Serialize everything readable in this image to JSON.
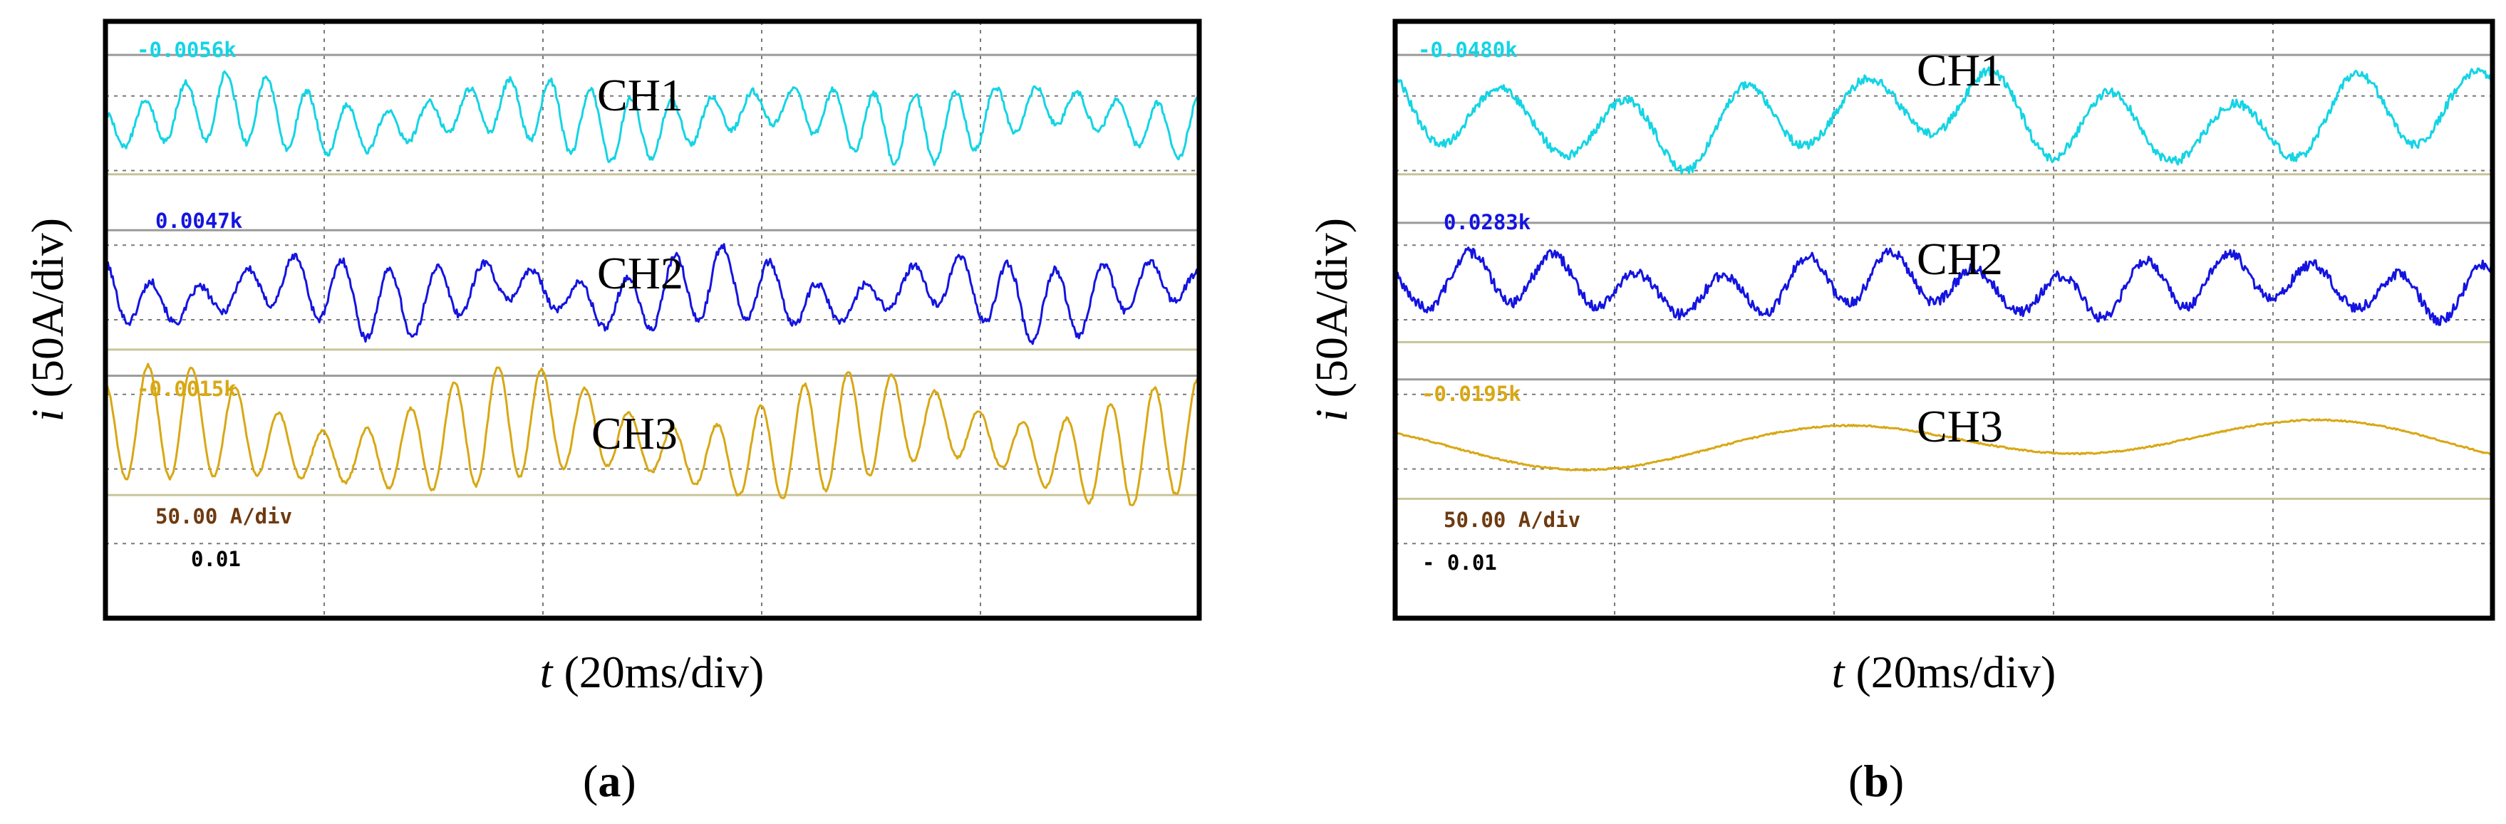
{
  "colors": {
    "ch1": "#14d4e4",
    "ch2": "#1414e0",
    "ch3": "#d8a814",
    "ch3_label": "#6e3a10",
    "frame": "#000000",
    "grid_dotted": "#7a7a7a",
    "ref_line_1": "#9a9a9a",
    "ref_line_2": "#c8c49a"
  },
  "chart_data": [
    {
      "id": "a",
      "type": "line",
      "panel_label": "(a)",
      "panel_letter": "a",
      "x_axis_var": "t",
      "x_axis_unit": "(20ms/div)",
      "y_axis_var": "i",
      "y_axis_unit": "(50A/div)",
      "divisions": {
        "x": 5,
        "y": 8
      },
      "xlim": [
        0,
        100
      ],
      "ylim": [
        0,
        8
      ],
      "x_unit": "ms",
      "y_unit": "div",
      "annotations": {
        "ch1_offset": "-0.0056k",
        "ch2_offset": "0.0047k",
        "ch3_offset": "-0.0015k",
        "scale": "50.00 A/div",
        "small_value": "0.01"
      },
      "series": [
        {
          "name": "CH1",
          "color_key": "ch1",
          "baseline": 6.7,
          "amplitude": 0.35,
          "fundamental_cycles": 27,
          "sub_cycles": 4,
          "ripple": 0.04,
          "modulation": 0.35
        },
        {
          "name": "CH2",
          "color_key": "ch2",
          "baseline": 4.35,
          "amplitude": 0.35,
          "fundamental_cycles": 23,
          "sub_cycles": 5,
          "ripple": 0.05,
          "modulation": 0.4
        },
        {
          "name": "CH3",
          "color_key": "ch3",
          "baseline": 2.4,
          "amplitude": 0.55,
          "fundamental_cycles": 25,
          "sub_cycles": 3,
          "ripple": 0.02,
          "modulation": 0.4
        }
      ]
    },
    {
      "id": "b",
      "type": "line",
      "panel_label": "(b)",
      "panel_letter": "b",
      "x_axis_var": "t",
      "x_axis_unit": "(20ms/div)",
      "y_axis_var": "i",
      "y_axis_unit": "(50A/div)",
      "divisions": {
        "x": 5,
        "y": 8
      },
      "xlim": [
        0,
        100
      ],
      "ylim": [
        0,
        8
      ],
      "x_unit": "ms",
      "y_unit": "div",
      "annotations": {
        "ch1_offset": "-0.0480k",
        "ch2_offset": "0.0283k",
        "ch3_offset": "-0.0195k",
        "scale": "50.00 A/div",
        "small_value": "- 0.01"
      },
      "series": [
        {
          "name": "CH1",
          "color_key": "ch1",
          "baseline": 6.7,
          "amplitude": 0.45,
          "fundamental_cycles": 9,
          "sub_cycles": 2,
          "ripple": 0.06,
          "modulation": 0.2
        },
        {
          "name": "CH2",
          "color_key": "ch2",
          "baseline": 4.45,
          "amplitude": 0.3,
          "fundamental_cycles": 13,
          "sub_cycles": 3,
          "ripple": 0.07,
          "modulation": 0.2
        },
        {
          "name": "CH3",
          "color_key": "ch3",
          "baseline": 2.35,
          "amplitude": 0.25,
          "fundamental_cycles": 2.2,
          "sub_cycles": 1,
          "ripple": 0.01,
          "modulation": 0.0
        }
      ]
    }
  ]
}
